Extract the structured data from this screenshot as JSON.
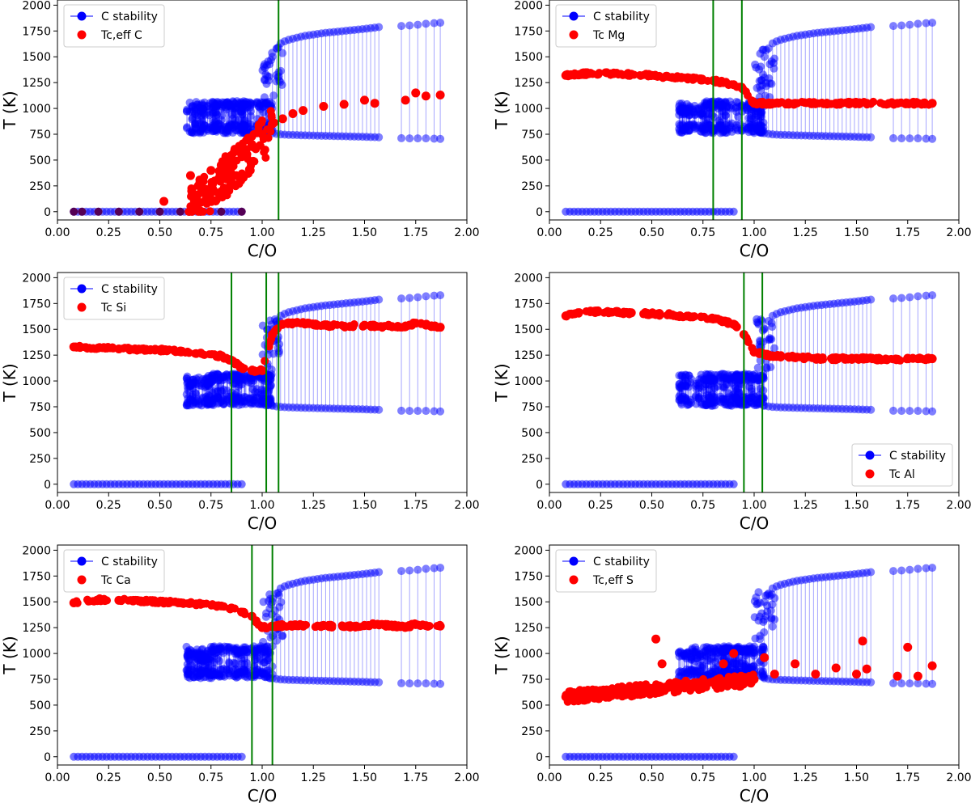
{
  "chart_data": [
    {
      "type": "scatter",
      "xlabel": "C/O",
      "ylabel": "T (K)",
      "xlim": [
        0,
        2
      ],
      "ylim": [
        -80,
        2050
      ],
      "xticks": [
        "0.00",
        "0.25",
        "0.50",
        "0.75",
        "1.00",
        "1.25",
        "1.50",
        "1.75",
        "2.00"
      ],
      "yticks": [
        "0",
        "250",
        "500",
        "750",
        "1000",
        "1250",
        "1500",
        "1750",
        "2000"
      ],
      "legend_position": "top-left",
      "vlines": [
        1.08
      ],
      "element": "C",
      "series": [
        {
          "name": "C stability",
          "color": "#0000ff"
        },
        {
          "name": "T_{c,eff} C",
          "color": "#ff0000",
          "pattern": "scatter-rise",
          "zero_points_x": [
            0.08,
            0.12,
            0.2,
            0.3,
            0.4,
            0.5,
            0.6,
            0.7,
            0.8,
            0.9
          ],
          "values_x": [
            0.52,
            0.65,
            0.7,
            0.75,
            0.8,
            0.85,
            0.9,
            0.95,
            1.0,
            1.05,
            1.1,
            1.15,
            1.2,
            1.3,
            1.4,
            1.5,
            1.55,
            1.7,
            1.75,
            1.8,
            1.87
          ],
          "values_y": [
            100,
            350,
            300,
            400,
            450,
            500,
            550,
            650,
            750,
            850,
            900,
            950,
            980,
            1020,
            1040,
            1080,
            1050,
            1080,
            1150,
            1120,
            1130
          ]
        }
      ],
      "legend": [
        "C stability",
        "Tc,eff C"
      ]
    },
    {
      "type": "scatter",
      "xlabel": "C/O",
      "ylabel": "T (K)",
      "xlim": [
        0,
        2
      ],
      "ylim": [
        -80,
        2050
      ],
      "xticks": [
        "0.00",
        "0.25",
        "0.50",
        "0.75",
        "1.00",
        "1.25",
        "1.50",
        "1.75",
        "2.00"
      ],
      "yticks": [
        "0",
        "250",
        "500",
        "750",
        "1000",
        "1250",
        "1500",
        "1750",
        "2000"
      ],
      "legend_position": "top-left",
      "vlines": [
        0.8,
        0.94
      ],
      "element": "Mg",
      "series": [
        {
          "name": "C stability",
          "color": "#0000ff"
        },
        {
          "name": "T_c Mg",
          "color": "#ff0000",
          "values_x": [
            0.08,
            0.2,
            0.3,
            0.4,
            0.5,
            0.6,
            0.7,
            0.8,
            0.85,
            0.9,
            0.94,
            1.0,
            1.1,
            1.2,
            1.3,
            1.4,
            1.5,
            1.55,
            1.7,
            1.75,
            1.8,
            1.87
          ],
          "values_y": [
            1320,
            1340,
            1335,
            1330,
            1320,
            1300,
            1290,
            1270,
            1250,
            1230,
            1200,
            1050,
            1050,
            1050,
            1050,
            1050,
            1050,
            1050,
            1050,
            1050,
            1050,
            1050
          ]
        }
      ],
      "legend": [
        "C stability",
        "Tc Mg"
      ]
    },
    {
      "type": "scatter",
      "xlabel": "C/O",
      "ylabel": "T (K)",
      "xlim": [
        0,
        2
      ],
      "ylim": [
        -80,
        2050
      ],
      "xticks": [
        "0.00",
        "0.25",
        "0.50",
        "0.75",
        "1.00",
        "1.25",
        "1.50",
        "1.75",
        "2.00"
      ],
      "yticks": [
        "0",
        "250",
        "500",
        "750",
        "1000",
        "1250",
        "1500",
        "1750",
        "2000"
      ],
      "legend_position": "top-left",
      "vlines": [
        0.85,
        1.02,
        1.08
      ],
      "element": "Si",
      "series": [
        {
          "name": "C stability",
          "color": "#0000ff"
        },
        {
          "name": "T_c Si",
          "color": "#ff0000",
          "values_x": [
            0.08,
            0.2,
            0.3,
            0.4,
            0.5,
            0.6,
            0.7,
            0.8,
            0.85,
            0.9,
            0.95,
            1.0,
            1.05,
            1.1,
            1.2,
            1.3,
            1.4,
            1.5,
            1.55,
            1.7,
            1.75,
            1.8,
            1.87
          ],
          "values_y": [
            1330,
            1320,
            1310,
            1305,
            1300,
            1290,
            1270,
            1240,
            1200,
            1130,
            1100,
            1100,
            1450,
            1550,
            1560,
            1540,
            1530,
            1540,
            1530,
            1530,
            1560,
            1540,
            1520
          ]
        }
      ],
      "legend": [
        "C stability",
        "Tc Si"
      ]
    },
    {
      "type": "scatter",
      "xlabel": "C/O",
      "ylabel": "T (K)",
      "xlim": [
        0,
        2
      ],
      "ylim": [
        -80,
        2050
      ],
      "xticks": [
        "0.00",
        "0.25",
        "0.50",
        "0.75",
        "1.00",
        "1.25",
        "1.50",
        "1.75",
        "2.00"
      ],
      "yticks": [
        "0",
        "250",
        "500",
        "750",
        "1000",
        "1250",
        "1500",
        "1750",
        "2000"
      ],
      "legend_position": "bottom-right",
      "vlines": [
        0.95,
        1.04
      ],
      "element": "Al",
      "series": [
        {
          "name": "C stability",
          "color": "#0000ff"
        },
        {
          "name": "T_c Al",
          "color": "#ff0000",
          "values_x": [
            0.08,
            0.2,
            0.3,
            0.4,
            0.5,
            0.6,
            0.7,
            0.8,
            0.85,
            0.9,
            0.95,
            1.0,
            1.05,
            1.1,
            1.2,
            1.3,
            1.4,
            1.5,
            1.55,
            1.7,
            1.75,
            1.8,
            1.87
          ],
          "values_y": [
            1630,
            1670,
            1665,
            1660,
            1650,
            1640,
            1620,
            1600,
            1580,
            1550,
            1450,
            1280,
            1260,
            1240,
            1230,
            1220,
            1215,
            1220,
            1215,
            1210,
            1220,
            1215,
            1215
          ]
        }
      ],
      "legend": [
        "C stability",
        "Tc Al"
      ]
    },
    {
      "type": "scatter",
      "xlabel": "C/O",
      "ylabel": "T (K)",
      "xlim": [
        0,
        2
      ],
      "ylim": [
        -80,
        2050
      ],
      "xticks": [
        "0.00",
        "0.25",
        "0.50",
        "0.75",
        "1.00",
        "1.25",
        "1.50",
        "1.75",
        "2.00"
      ],
      "yticks": [
        "0",
        "250",
        "500",
        "750",
        "1000",
        "1250",
        "1500",
        "1750",
        "2000"
      ],
      "legend_position": "top-left",
      "vlines": [
        0.95,
        1.05
      ],
      "element": "Ca",
      "series": [
        {
          "name": "C stability",
          "color": "#0000ff"
        },
        {
          "name": "T_c Ca",
          "color": "#ff0000",
          "values_x": [
            0.08,
            0.2,
            0.3,
            0.4,
            0.5,
            0.6,
            0.7,
            0.8,
            0.85,
            0.9,
            0.95,
            1.0,
            1.05,
            1.1,
            1.2,
            1.3,
            1.4,
            1.5,
            1.55,
            1.7,
            1.75,
            1.8,
            1.87
          ],
          "values_y": [
            1490,
            1520,
            1515,
            1510,
            1500,
            1490,
            1480,
            1460,
            1440,
            1400,
            1360,
            1250,
            1260,
            1270,
            1270,
            1270,
            1260,
            1270,
            1280,
            1260,
            1280,
            1270,
            1265
          ]
        }
      ],
      "legend": [
        "C stability",
        "Tc Ca"
      ]
    },
    {
      "type": "scatter",
      "xlabel": "C/O",
      "ylabel": "T (K)",
      "xlim": [
        0,
        2
      ],
      "ylim": [
        -80,
        2050
      ],
      "xticks": [
        "0.00",
        "0.25",
        "0.50",
        "0.75",
        "1.00",
        "1.25",
        "1.50",
        "1.75",
        "2.00"
      ],
      "yticks": [
        "0",
        "250",
        "500",
        "750",
        "1000",
        "1250",
        "1500",
        "1750",
        "2000"
      ],
      "legend_position": "top-left",
      "vlines": [],
      "element": "S",
      "series": [
        {
          "name": "C stability",
          "color": "#0000ff"
        },
        {
          "name": "T_{c,eff} S",
          "color": "#ff0000",
          "values_x": [
            0.08,
            0.2,
            0.3,
            0.4,
            0.5,
            0.52,
            0.55,
            0.6,
            0.7,
            0.8,
            0.85,
            0.9,
            1.0,
            1.05,
            1.1,
            1.2,
            1.3,
            1.4,
            1.5,
            1.53,
            1.55,
            1.7,
            1.75,
            1.8,
            1.87
          ],
          "values_y": [
            580,
            600,
            620,
            640,
            660,
            1140,
            900,
            680,
            700,
            720,
            900,
            1000,
            750,
            960,
            800,
            900,
            800,
            860,
            800,
            1120,
            850,
            780,
            1060,
            780,
            880
          ]
        }
      ],
      "legend": [
        "C stability",
        "Tc,eff S"
      ]
    }
  ],
  "stability_model": {
    "zero_x_range": [
      0.08,
      0.9
    ],
    "cluster_x_range": [
      0.63,
      1.05
    ],
    "upper_branch": {
      "x": [
        1.05,
        1.08,
        1.12,
        1.2,
        1.3,
        1.4,
        1.5,
        1.58,
        1.7,
        1.76,
        1.8,
        1.87
      ],
      "y": [
        1500,
        1620,
        1660,
        1700,
        1730,
        1750,
        1770,
        1790,
        1800,
        1810,
        1820,
        1830
      ]
    },
    "lower_branch": {
      "x": [
        1.05,
        1.08,
        1.12,
        1.2,
        1.3,
        1.4,
        1.5,
        1.58,
        1.7,
        1.76,
        1.8,
        1.87
      ],
      "y": [
        760,
        750,
        745,
        740,
        735,
        730,
        725,
        720,
        710,
        710,
        710,
        705
      ]
    },
    "cluster_y_top": [
      1000,
      1070
    ],
    "cluster_y_bottom": [
      760,
      850
    ]
  }
}
